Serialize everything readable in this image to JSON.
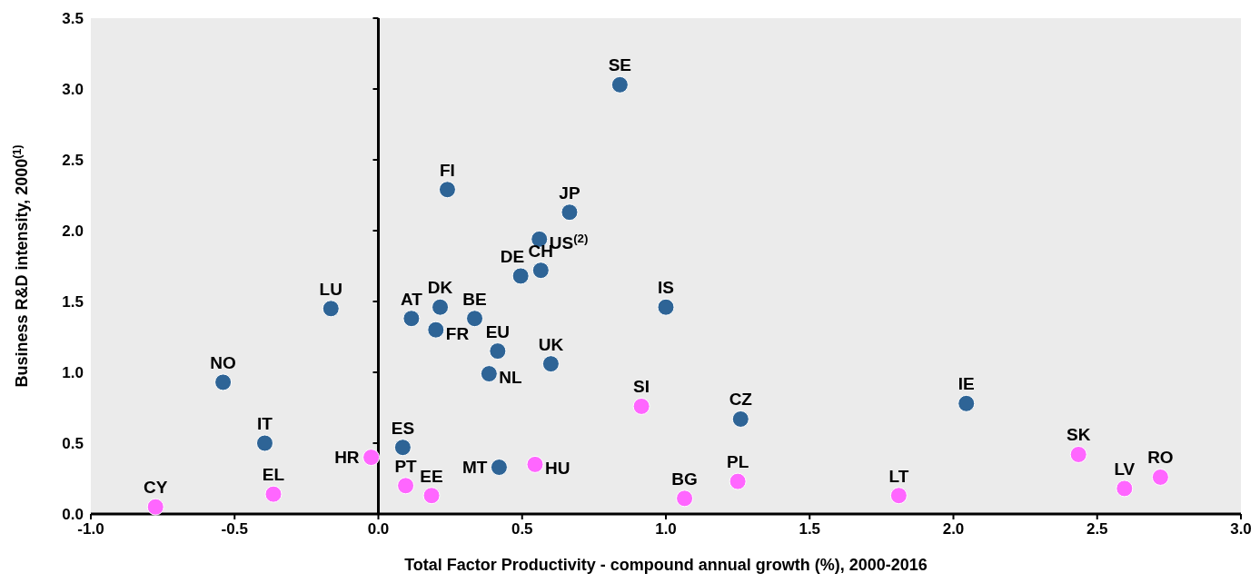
{
  "chart_data": {
    "type": "scatter",
    "xlabel": "Total Factor Productivity - compound annual growth (%), 2000-2016",
    "ylabel": "Business R&D intensity, 2000$^{(1)}$",
    "xlim": [
      -1,
      3
    ],
    "xticks": [
      {
        "value": -1,
        "label": "-1.0"
      },
      {
        "value": -0.5,
        "label": "-0.5"
      },
      {
        "value": 0,
        "label": "0.0"
      },
      {
        "value": 0.5,
        "label": "0.5"
      },
      {
        "value": 1,
        "label": "1.0"
      },
      {
        "value": 1.5,
        "label": "1.5"
      },
      {
        "value": 2,
        "label": "2.0"
      },
      {
        "value": 2.5,
        "label": "2.5"
      },
      {
        "value": 3,
        "label": "3.0"
      }
    ],
    "ylim": [
      0,
      3.5
    ],
    "yticks": [
      {
        "value": 0,
        "label": "0.0"
      },
      {
        "value": 0.5,
        "label": "0.5"
      },
      {
        "value": 1,
        "label": "1.0"
      },
      {
        "value": 1.5,
        "label": "1.5"
      },
      {
        "value": 2,
        "label": "2.0"
      },
      {
        "value": 2.5,
        "label": "2.5"
      },
      {
        "value": 3,
        "label": "3.0"
      },
      {
        "value": 3.5,
        "label": "3.5"
      }
    ],
    "ref_lines": [
      {
        "axis": "x",
        "value": 0
      }
    ],
    "marker": "circle",
    "series": [
      {
        "color": "#2e6496",
        "x": [
          0.84,
          0.24,
          0.665,
          0.56,
          0.495,
          0.565,
          -0.165,
          0.115,
          0.215,
          0.335,
          0.2,
          0.415,
          0.385,
          0.6,
          1.0,
          -0.54,
          -0.395,
          0.085,
          0.42,
          1.26,
          2.045
        ],
        "values": [
          3.03,
          2.29,
          2.13,
          1.94,
          1.68,
          1.72,
          1.45,
          1.38,
          1.46,
          1.38,
          1.3,
          1.15,
          0.99,
          1.06,
          1.46,
          0.93,
          0.5,
          0.47,
          0.33,
          0.67,
          0.78
        ]
      },
      {
        "color": "#ff66ff",
        "x": [
          -0.775,
          -0.365,
          -0.025,
          0.095,
          0.185,
          0.545,
          0.915,
          1.065,
          1.25,
          1.81,
          2.435,
          2.595,
          2.72
        ],
        "values": [
          0.05,
          0.14,
          0.4,
          0.2,
          0.13,
          0.35,
          0.76,
          0.11,
          0.23,
          0.13,
          0.42,
          0.18,
          0.26
        ]
      }
    ],
    "annotations": [
      {
        "text": "SE",
        "x": 0.84,
        "y": 3.03
      },
      {
        "text": "FI",
        "x": 0.24,
        "y": 2.29
      },
      {
        "text": "JP",
        "x": 0.665,
        "y": 2.13
      },
      {
        "text": "US$^{(2)}$",
        "x": 0.56,
        "y": 1.94
      },
      {
        "text": "DE",
        "x": 0.495,
        "y": 1.68
      },
      {
        "text": "CH",
        "x": 0.565,
        "y": 1.72
      },
      {
        "text": "LU",
        "x": -0.165,
        "y": 1.45
      },
      {
        "text": "AT",
        "x": 0.115,
        "y": 1.38
      },
      {
        "text": "DK",
        "x": 0.215,
        "y": 1.46
      },
      {
        "text": "BE",
        "x": 0.335,
        "y": 1.38
      },
      {
        "text": "FR",
        "x": 0.2,
        "y": 1.3
      },
      {
        "text": "EU",
        "x": 0.415,
        "y": 1.15
      },
      {
        "text": "NL",
        "x": 0.385,
        "y": 0.99
      },
      {
        "text": "UK",
        "x": 0.6,
        "y": 1.06
      },
      {
        "text": "IS",
        "x": 1.0,
        "y": 1.46
      },
      {
        "text": "NO",
        "x": -0.54,
        "y": 0.93
      },
      {
        "text": "IT",
        "x": -0.395,
        "y": 0.5
      },
      {
        "text": "ES",
        "x": 0.085,
        "y": 0.47
      },
      {
        "text": "MT",
        "x": 0.42,
        "y": 0.33
      },
      {
        "text": "CZ",
        "x": 1.26,
        "y": 0.67
      },
      {
        "text": "IE",
        "x": 2.045,
        "y": 0.78
      },
      {
        "text": "CY",
        "x": -0.775,
        "y": 0.05
      },
      {
        "text": "EL",
        "x": -0.365,
        "y": 0.14
      },
      {
        "text": "HR",
        "x": -0.025,
        "y": 0.4
      },
      {
        "text": "PT",
        "x": 0.095,
        "y": 0.2
      },
      {
        "text": "EE",
        "x": 0.185,
        "y": 0.13
      },
      {
        "text": "HU",
        "x": 0.545,
        "y": 0.35
      },
      {
        "text": "SI",
        "x": 0.915,
        "y": 0.76
      },
      {
        "text": "BG",
        "x": 1.065,
        "y": 0.11
      },
      {
        "text": "PL",
        "x": 1.25,
        "y": 0.23
      },
      {
        "text": "LT",
        "x": 1.81,
        "y": 0.13
      },
      {
        "text": "SK",
        "x": 2.435,
        "y": 0.42
      },
      {
        "text": "LV",
        "x": 2.595,
        "y": 0.18
      },
      {
        "text": "RO",
        "x": 2.72,
        "y": 0.26
      }
    ]
  }
}
